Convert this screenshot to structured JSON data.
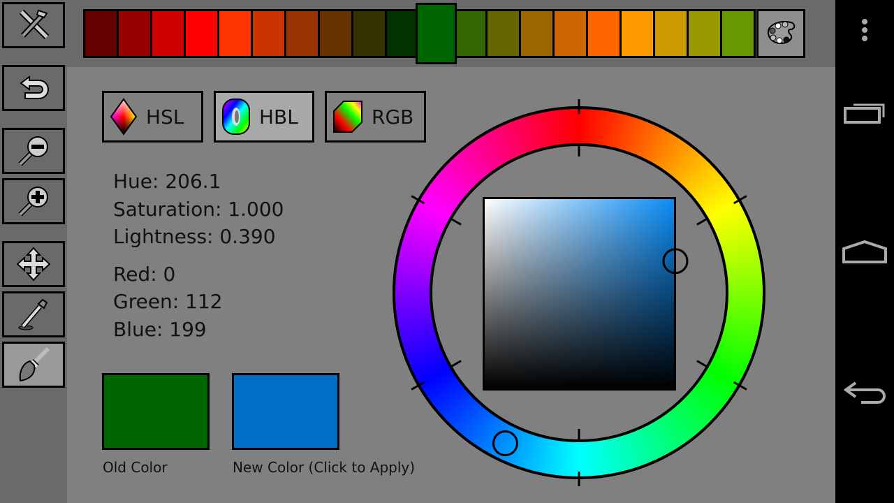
{
  "palette": {
    "colors": [
      "#660000",
      "#990000",
      "#cc0000",
      "#ff0000",
      "#ff3300",
      "#cc3300",
      "#993300",
      "#663300",
      "#333300",
      "#003300",
      "#006600",
      "#336600",
      "#666600",
      "#996600",
      "#cc6600",
      "#ff6600",
      "#ff9900",
      "#cc9900",
      "#999900",
      "#669900"
    ],
    "selected_color": "#006600",
    "palette_icon": "palette-icon"
  },
  "sidebar": {
    "items": [
      "tools-icon",
      "undo-icon",
      "zoom-out-icon",
      "zoom-in-icon",
      "move-icon",
      "eyedropper-icon",
      "brush-icon"
    ],
    "active": "brush-icon"
  },
  "modes": {
    "hsl": "HSL",
    "hbl": "HBL",
    "rgb": "RGB",
    "active": "HBL"
  },
  "info": {
    "hue": "Hue: 206.1",
    "saturation": "Saturation: 1.000",
    "lightness": "Lightness: 0.390",
    "red": "Red: 0",
    "green": "Green: 112",
    "blue": "Blue: 199"
  },
  "swatches": {
    "old_label": "Old Color",
    "old_color": "#006600",
    "new_label": "New Color (Click to Apply)",
    "new_color": "#0070c7"
  },
  "wheel": {
    "hue": 206.1,
    "saturation": 1.0,
    "lightness": 0.39
  },
  "navbar": {
    "icons": [
      "menu-icon",
      "recents-icon",
      "home-icon",
      "back-icon"
    ]
  }
}
